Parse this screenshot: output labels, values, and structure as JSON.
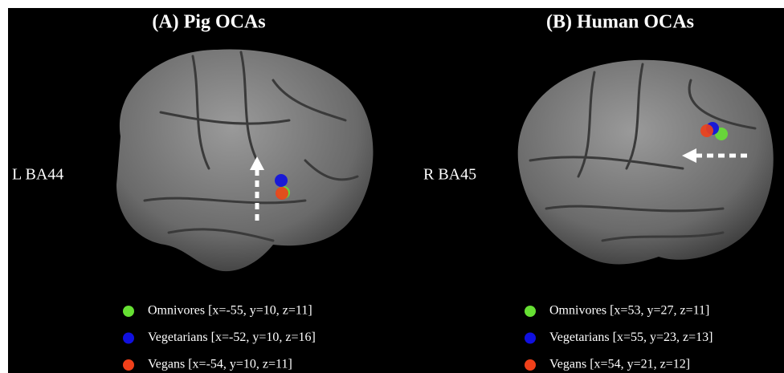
{
  "panels": [
    {
      "title": "(A) Pig OCAs",
      "side_label": "L BA44",
      "legend": [
        {
          "color": "#66e033",
          "label": "Omnivores [x=-55, y=10, z=11]"
        },
        {
          "color": "#1010e0",
          "label": "Vegetarians [x=-52, y=10, z=16]"
        },
        {
          "color": "#f0401a",
          "label": "Vegans [x=-54, y=10, z=11]"
        }
      ]
    },
    {
      "title": "(B) Human OCAs",
      "side_label": "R BA45",
      "legend": [
        {
          "color": "#66e033",
          "label": "Omnivores [x=53, y=27, z=11]"
        },
        {
          "color": "#1010e0",
          "label": "Vegetarians [x=55, y=23, z=13]"
        },
        {
          "color": "#f0401a",
          "label": "Vegans [x=54, y=21, z=12]"
        }
      ]
    }
  ]
}
